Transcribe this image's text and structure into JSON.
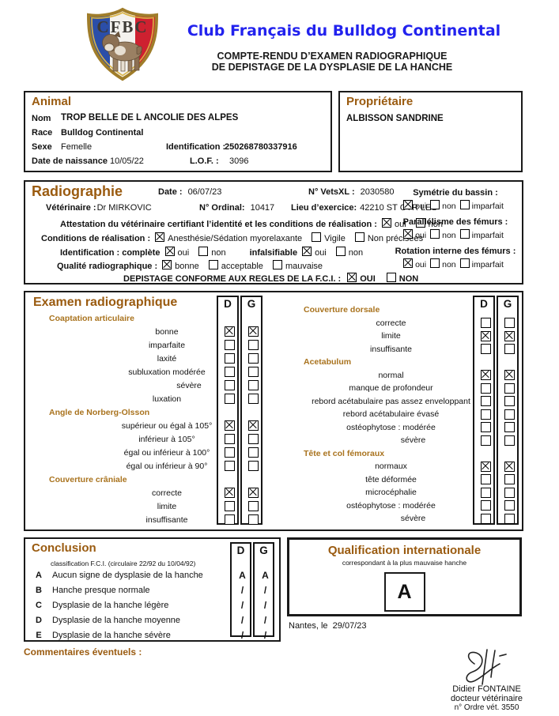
{
  "header": {
    "logo_text": "CFBC",
    "club_name": "Club Français du Bulldog Continental",
    "report_line1": "COMPTE-RENDU D’EXAMEN RADIOGRAPHIQUE",
    "report_line2": "DE DEPISTAGE DE LA DYSPLASIE DE LA HANCHE"
  },
  "animal": {
    "title": "Animal",
    "nom_label": "Nom",
    "nom": "TROP BELLE DE L ANCOLIE DES ALPES",
    "race_label": "Race",
    "race": "Bulldog Continental",
    "sexe_label": "Sexe",
    "sexe": "Femelle",
    "identification_label": "Identification :",
    "identification": "250268780337916",
    "naissance_label": "Date de naissance",
    "naissance": "10/05/22",
    "lof_label": "L.O.F. :",
    "lof": "3096"
  },
  "proprietaire": {
    "title": "Propriétaire",
    "nom": "ALBISSON SANDRINE"
  },
  "radiographie": {
    "title": "Radiographie",
    "date_label": "Date :",
    "date": "06/07/23",
    "vetsxl_label": "N° VetsXL :",
    "vetsxl": "2030580",
    "veterinaire_label": "Vétérinaire :",
    "veterinaire": "Dr  MIRKOVIC",
    "ordinal_label": "N° Ordinal:",
    "ordinal": "10417",
    "lieu_label": "Lieu d’exercice:",
    "lieu": "42210 ST CYR LES",
    "attestation_label": "Attestation du vétérinaire certifiant l’identité et les conditions de réalisation :",
    "attestation_options": [
      {
        "label": "oui",
        "checked": true
      },
      {
        "label": "non",
        "checked": false
      }
    ],
    "conditions_label": "Conditions de réalisation :",
    "conditions_options": [
      {
        "label": "Anesthésie/Sédation myorelaxante",
        "checked": true
      },
      {
        "label": "Vigile",
        "checked": false
      },
      {
        "label": "Non précisées",
        "checked": false
      }
    ],
    "identification_label": "Identification : complète",
    "identification_options": [
      {
        "label": "oui",
        "checked": true
      },
      {
        "label": "non",
        "checked": false
      }
    ],
    "infalsifiable_label": "infalsifiable",
    "infalsifiable_options": [
      {
        "label": "oui",
        "checked": true
      },
      {
        "label": "non",
        "checked": false
      }
    ],
    "qualite_label": "Qualité radiographique :",
    "qualite_options": [
      {
        "label": "bonne",
        "checked": true
      },
      {
        "label": "acceptable",
        "checked": false
      },
      {
        "label": "mauvaise",
        "checked": false
      }
    ],
    "depistage_label": "DEPISTAGE CONFORME AUX REGLES DE LA F.C.I. :",
    "depistage_options": [
      {
        "label": "OUI",
        "checked": true
      },
      {
        "label": "NON",
        "checked": false
      }
    ],
    "symetrie_label": "Symétrie du bassin :",
    "symetrie_options": [
      {
        "label": "oui",
        "checked": true
      },
      {
        "label": "non",
        "checked": false
      },
      {
        "label": "imparfait",
        "checked": false
      }
    ],
    "parallelisme_label": "Parallélisme des fémurs :",
    "parallelisme_options": [
      {
        "label": "oui",
        "checked": true
      },
      {
        "label": "non",
        "checked": false
      },
      {
        "label": "imparfait",
        "checked": false
      }
    ],
    "rotation_label": "Rotation interne des fémurs :",
    "rotation_options": [
      {
        "label": "oui",
        "checked": true
      },
      {
        "label": "non",
        "checked": false
      },
      {
        "label": "imparfait",
        "checked": false
      }
    ]
  },
  "examen": {
    "title": "Examen radiographique",
    "col_droite": "D",
    "col_gauche": "G",
    "left_rows": [
      {
        "h": true,
        "label": "Coaptation articulaire"
      },
      {
        "label": "bonne",
        "d": true,
        "g": true
      },
      {
        "label": "imparfaite",
        "d": false,
        "g": false
      },
      {
        "label": "laxité",
        "d": false,
        "g": false
      },
      {
        "label": "subluxation  modérée",
        "d": false,
        "g": false
      },
      {
        "label": "sévère",
        "ind": 1,
        "d": false,
        "g": false
      },
      {
        "label": "luxation",
        "d": false,
        "g": false
      },
      {
        "h": true,
        "label": "Angle de Norberg-Olsson"
      },
      {
        "label": "supérieur ou égal à 105°",
        "d": true,
        "g": true
      },
      {
        "label": "inférieur à 105°",
        "d": false,
        "g": false
      },
      {
        "label": "égal ou inférieur à 100°",
        "d": false,
        "g": false
      },
      {
        "label": "égal ou inférieur à 90°",
        "d": false,
        "g": false
      },
      {
        "h": true,
        "label": "Couverture crâniale"
      },
      {
        "label": "correcte",
        "d": true,
        "g": true
      },
      {
        "label": "limite",
        "d": false,
        "g": false
      },
      {
        "label": "insuffisante",
        "d": false,
        "g": false
      }
    ],
    "right_rows": [
      {
        "h": true,
        "label": "Couverture dorsale"
      },
      {
        "label": "correcte",
        "d": false,
        "g": false
      },
      {
        "label": "limite",
        "d": true,
        "g": true
      },
      {
        "label": "insuffisante",
        "d": false,
        "g": false
      },
      {
        "h": true,
        "label": "Acetabulum"
      },
      {
        "label": "normal",
        "d": true,
        "g": true
      },
      {
        "label": "manque de profondeur",
        "d": false,
        "g": false
      },
      {
        "label": "rebord acétabulaire pas assez enveloppant",
        "d": false,
        "g": false
      },
      {
        "label": "rebord acétabulaire évasé",
        "d": false,
        "g": false
      },
      {
        "label": "ostéophytose : modérée",
        "d": false,
        "g": false
      },
      {
        "label": "sévère",
        "ind": 1,
        "d": false,
        "g": false
      },
      {
        "h": true,
        "label": "Tête et col fémoraux"
      },
      {
        "label": "normaux",
        "d": true,
        "g": true
      },
      {
        "label": "tête déformée",
        "d": false,
        "g": false
      },
      {
        "label": "microcéphalie",
        "d": false,
        "g": false
      },
      {
        "label": "ostéophytose : modérée",
        "d": false,
        "g": false
      },
      {
        "label": "sévère",
        "ind": 1,
        "d": false,
        "g": false
      }
    ]
  },
  "conclusion": {
    "title": "Conclusion",
    "note": "classification F.C.I. (circulaire 22/92 du 10/04/92)",
    "col_droite": "D",
    "col_gauche": "G",
    "rows": [
      {
        "code": "A",
        "label": "Aucun signe de dysplasie de la hanche",
        "d": "A",
        "g": "A"
      },
      {
        "code": "B",
        "label": "Hanche presque normale",
        "d": "/",
        "g": "/"
      },
      {
        "code": "C",
        "label": "Dysplasie de la hanche légère",
        "d": "/",
        "g": "/"
      },
      {
        "code": "D",
        "label": "Dysplasie de la hanche moyenne",
        "d": "/",
        "g": "/"
      },
      {
        "code": "E",
        "label": "Dysplasie de la hanche sévère",
        "d": "/",
        "g": "/"
      }
    ]
  },
  "qualification": {
    "title": "Qualification internationale",
    "subtitle": "correspondant à la plus mauvaise hanche",
    "grade": "A"
  },
  "footer": {
    "place_date_label": "Nantes, le",
    "place_date": "29/07/23",
    "commentaires_label": "Commentaires éventuels :",
    "signataire_nom": "Didier FONTAINE",
    "signataire_titre": "docteur vétérinaire",
    "signataire_ordre": "n° Ordre vét. 3550"
  }
}
